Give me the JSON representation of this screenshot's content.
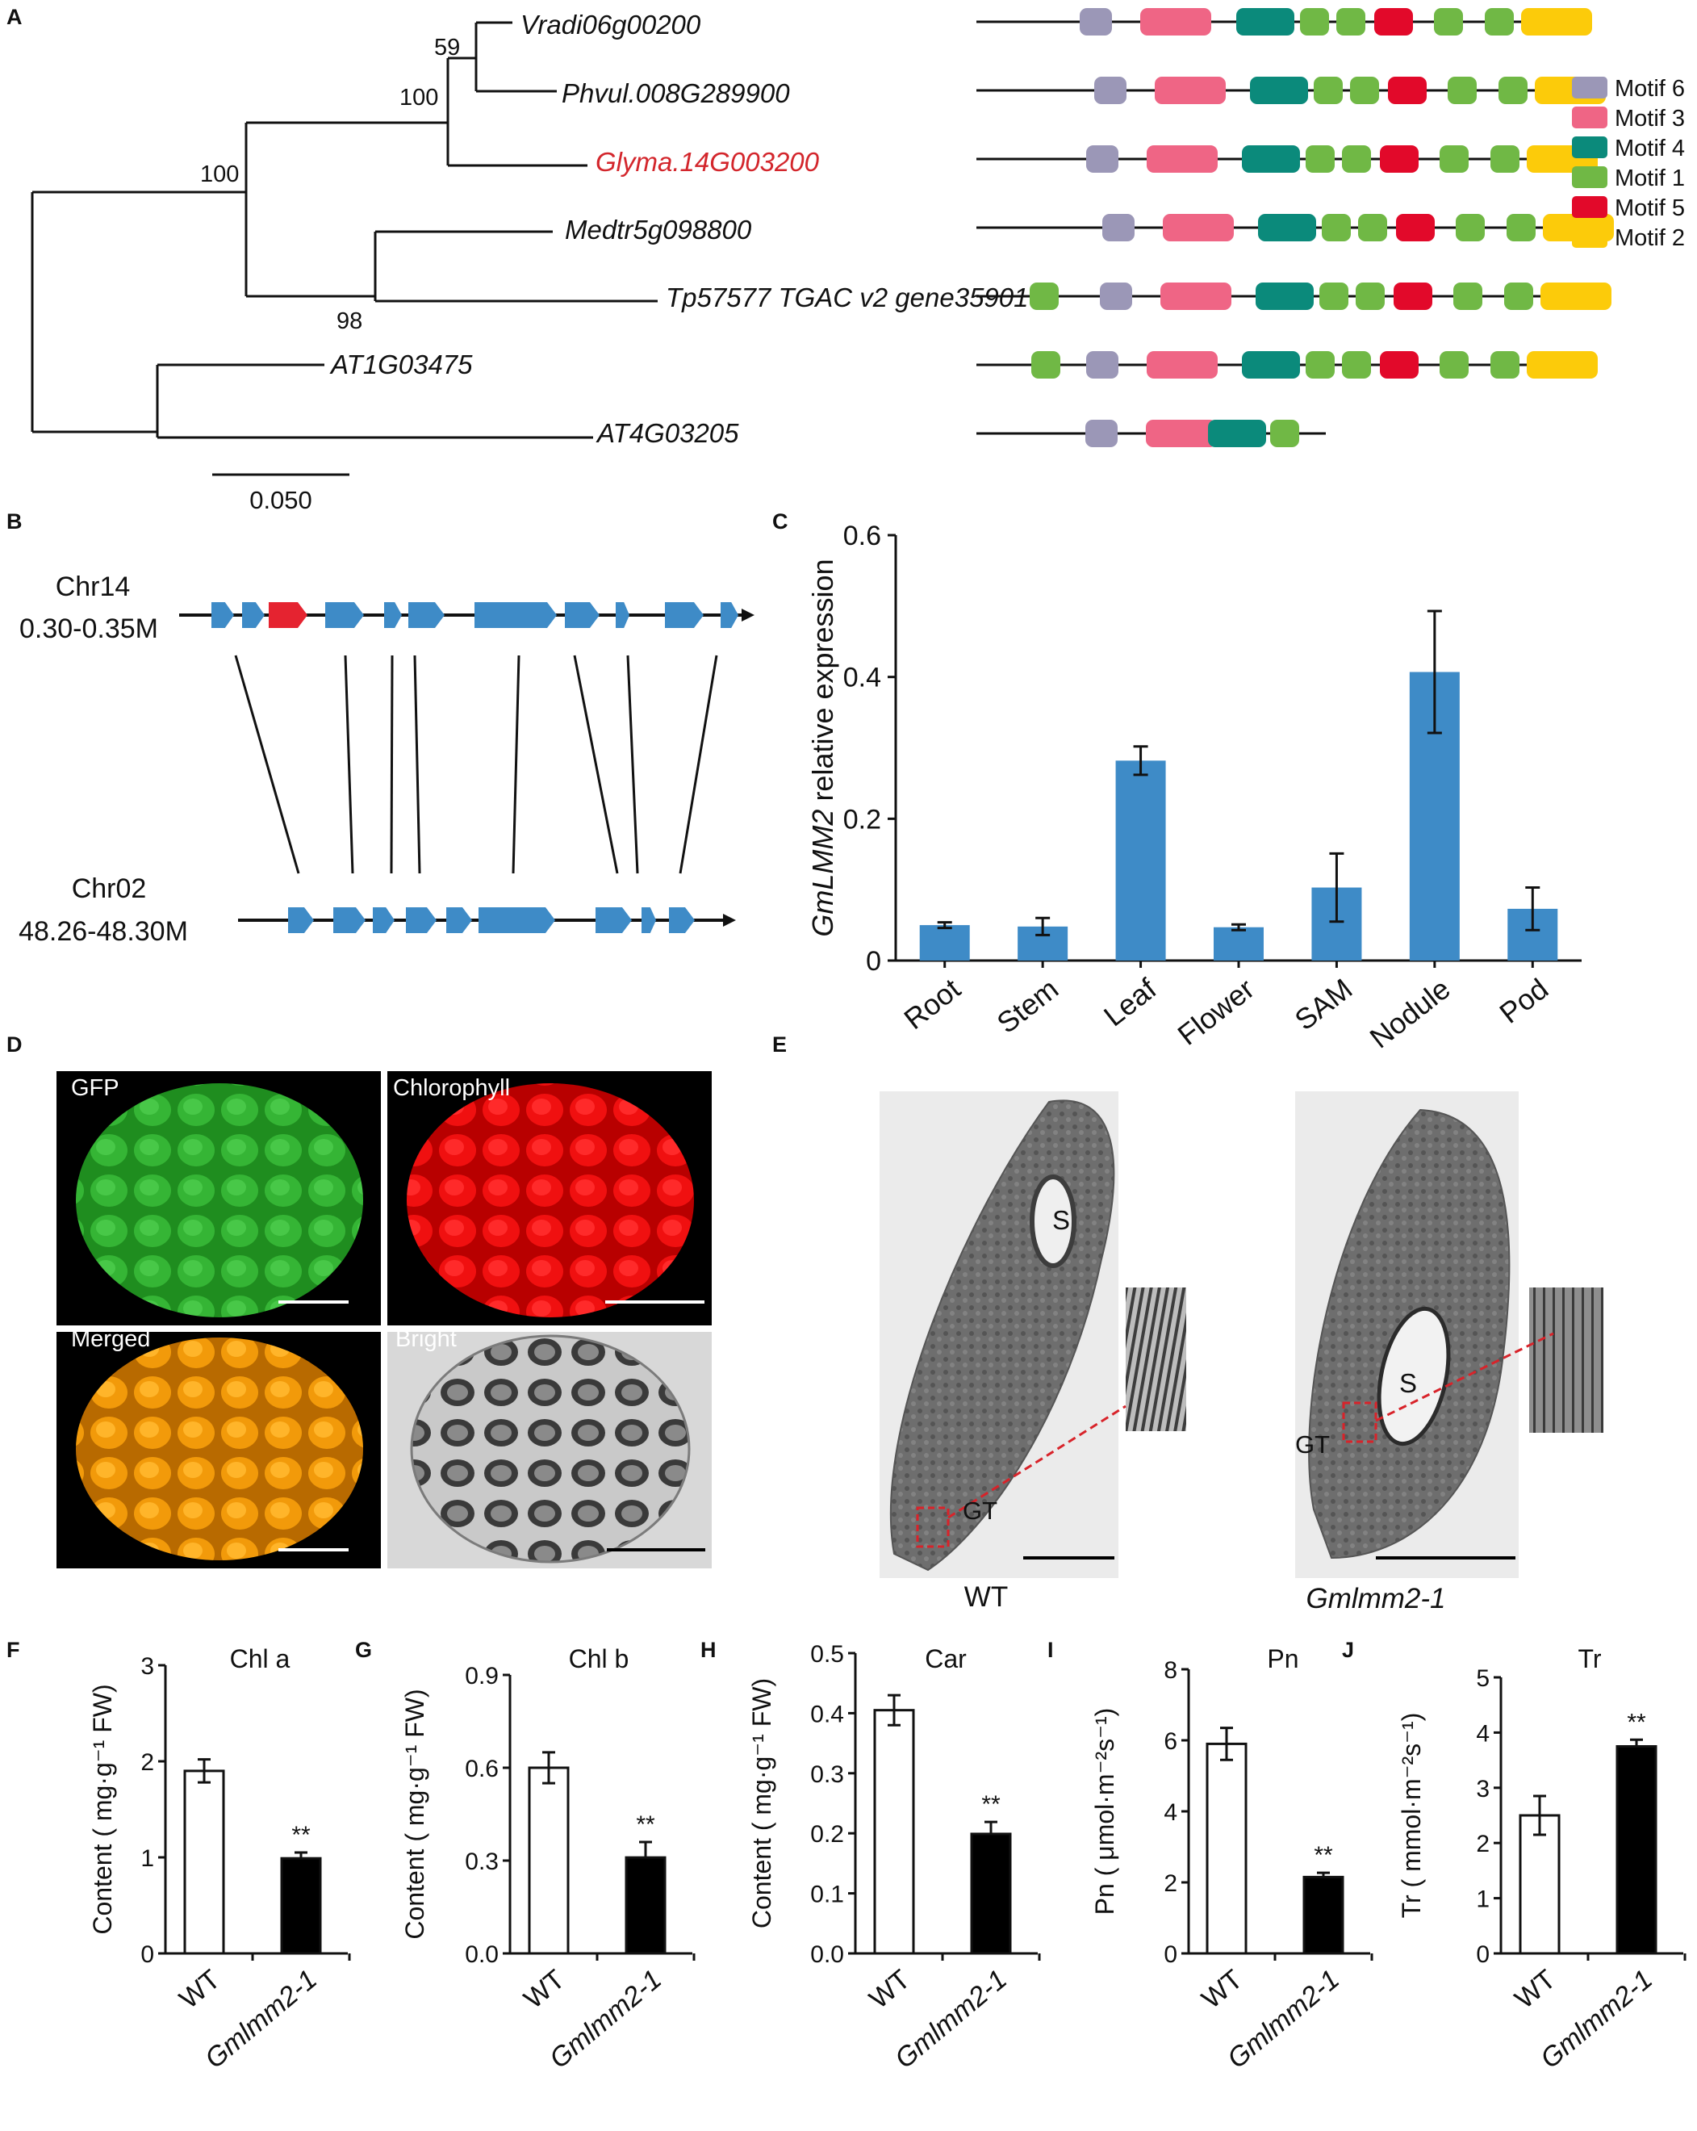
{
  "panels": {
    "A": "A",
    "B": "B",
    "C": "C",
    "D": "D",
    "E": "E",
    "F": "F",
    "G": "G",
    "H": "H",
    "I": "I",
    "J": "J"
  },
  "colors": {
    "motif6": "#9b97b7",
    "motif3": "#ef6585",
    "motif4": "#0b8a7b",
    "motif1": "#70b845",
    "motif5": "#e2092a",
    "motif2": "#fccb0a",
    "gene_blue": "#3e8bc7",
    "gene_red": "#e52330",
    "highlight_red": "#d3262c",
    "bar_blue": "#3e8bc7"
  },
  "panelA": {
    "genes": [
      {
        "name": "Vradi06g00200",
        "highlight": false
      },
      {
        "name": "Phvul.008G289900",
        "highlight": false
      },
      {
        "name": "Glyma.14G003200",
        "highlight": true
      },
      {
        "name": "Medtr5g098800",
        "highlight": false
      },
      {
        "name": "Tp57577 TGAC v2 gene35901",
        "highlight": false
      },
      {
        "name": "AT1G03475",
        "highlight": false
      },
      {
        "name": "AT4G03205",
        "highlight": false
      }
    ],
    "bootstraps": [
      "59",
      "100",
      "100",
      "98"
    ],
    "scale_label": "0.050",
    "motif_legend": [
      "Motif 6",
      "Motif 3",
      "Motif 4",
      "Motif 1",
      "Motif 5",
      "Motif 2"
    ],
    "motif_tracks": [
      [
        "motif6",
        "motif3",
        "motif4",
        "motif1",
        "motif1",
        "motif5",
        "motif1",
        "motif1",
        "motif2"
      ],
      [
        "motif6",
        "motif3",
        "motif4",
        "motif1",
        "motif1",
        "motif5",
        "motif1",
        "motif1",
        "motif2"
      ],
      [
        "motif6",
        "motif3",
        "motif4",
        "motif1",
        "motif1",
        "motif5",
        "motif1",
        "motif1",
        "motif2"
      ],
      [
        "motif6",
        "motif3",
        "motif4",
        "motif1",
        "motif1",
        "motif5",
        "motif1",
        "motif1",
        "motif2"
      ],
      [
        "motif1",
        "motif6",
        "motif3",
        "motif4",
        "motif1",
        "motif1",
        "motif5",
        "motif1",
        "motif1",
        "motif2"
      ],
      [
        "motif1",
        "motif6",
        "motif3",
        "motif4",
        "motif1",
        "motif1",
        "motif5",
        "motif1",
        "motif1",
        "motif2"
      ],
      [
        "motif6",
        "motif3",
        "motif4",
        "motif1"
      ]
    ]
  },
  "panelB": {
    "chr_top": "Chr14",
    "chr_top_range": "0.30-0.35M",
    "chr_bottom": "Chr02",
    "chr_bottom_range": "48.26-48.30M"
  },
  "panelC": {
    "chart_data": {
      "type": "bar",
      "categories": [
        "Root",
        "Stem",
        "Leaf",
        "Flower",
        "SAM",
        "Nodule",
        "Pod"
      ],
      "values": [
        0.05,
        0.048,
        0.282,
        0.047,
        0.103,
        0.407,
        0.073
      ],
      "errors": [
        0.004,
        0.012,
        0.02,
        0.004,
        0.048,
        0.086,
        0.03
      ],
      "ylabel_italic": "GmLMM2",
      "ylabel_rest": " relative  expression",
      "ylim": [
        0,
        0.6
      ],
      "yticks": [
        "0",
        "0.2",
        "0.4",
        "0.6"
      ],
      "grid": false
    }
  },
  "panelD": {
    "labels": [
      "GFP",
      "Chlorophyll",
      "Merged",
      "Bright"
    ]
  },
  "panelE": {
    "wt_label": "WT",
    "mut_label": "Gmlmm2-1",
    "s_label": "S",
    "gt_label": "GT"
  },
  "small_charts": [
    {
      "panel": "F",
      "type": "bar",
      "title": "Chl a",
      "ylabel": "Content ( mg·g⁻¹ FW)",
      "ylim": [
        0,
        3
      ],
      "yticks": [
        "0",
        "1",
        "2",
        "3"
      ],
      "categories": [
        "WT",
        "Gmlmm2-1"
      ],
      "values": [
        1.9,
        0.99
      ],
      "errors": [
        0.12,
        0.06
      ],
      "sig": "**"
    },
    {
      "panel": "G",
      "type": "bar",
      "title": "Chl b",
      "ylabel": "Content ( mg·g⁻¹ FW)",
      "ylim": [
        0,
        0.9
      ],
      "yticks": [
        "0.0",
        "0.3",
        "0.6",
        "0.9"
      ],
      "categories": [
        "WT",
        "Gmlmm2-1"
      ],
      "values": [
        0.6,
        0.31
      ],
      "errors": [
        0.05,
        0.05
      ],
      "sig": "**"
    },
    {
      "panel": "H",
      "type": "bar",
      "title": "Car",
      "ylabel": "Content ( mg·g⁻¹ FW)",
      "ylim": [
        0,
        0.5
      ],
      "yticks": [
        "0.0",
        "0.1",
        "0.2",
        "0.3",
        "0.4",
        "0.5"
      ],
      "categories": [
        "WT",
        "Gmlmm2-1"
      ],
      "values": [
        0.405,
        0.199
      ],
      "errors": [
        0.025,
        0.02
      ],
      "sig": "**"
    },
    {
      "panel": "I",
      "type": "bar",
      "title": "Pn",
      "ylabel": "Pn ( μmol·m⁻²s⁻¹)",
      "ylim": [
        0,
        8
      ],
      "yticks": [
        "0",
        "2",
        "4",
        "6",
        "8"
      ],
      "categories": [
        "WT",
        "Gmlmm2-1"
      ],
      "values": [
        5.9,
        2.15
      ],
      "errors": [
        0.45,
        0.12
      ],
      "sig": "**"
    },
    {
      "panel": "J",
      "type": "bar",
      "title": "Tr",
      "ylabel": "Tr ( mmol·m⁻²s⁻¹)",
      "ylim": [
        0,
        5
      ],
      "yticks": [
        "0",
        "1",
        "2",
        "3",
        "4",
        "5"
      ],
      "categories": [
        "WT",
        "Gmlmm2-1"
      ],
      "values": [
        2.5,
        3.75
      ],
      "errors": [
        0.35,
        0.12
      ],
      "sig": "**"
    }
  ]
}
